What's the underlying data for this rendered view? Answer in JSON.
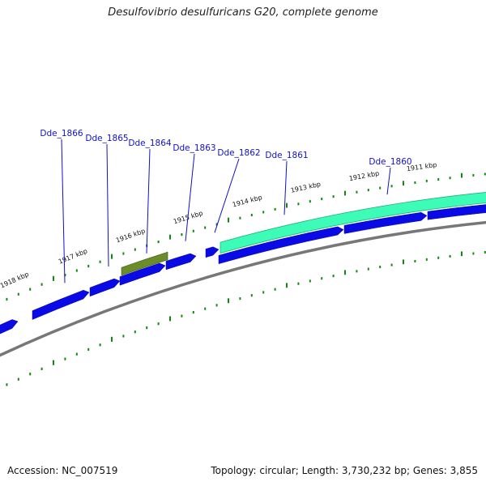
{
  "title": "Desulfovibrio desulfuricans G20, complete genome",
  "footer": {
    "accession": "Accession: NC_007519",
    "summary": "Topology: circular; Length: 3,730,232 bp; Genes: 3,855"
  },
  "colors": {
    "cds": "#0a0ae6",
    "cds_highlight": "#6b8c2a",
    "rna": "#3dfcb8",
    "backbone": "#777777",
    "ticks": "#118811",
    "gene_label": "#1010c8"
  },
  "kbp_labels": [
    "1918 kbp",
    "1917 kbp",
    "1916 kbp",
    "1915 kbp",
    "1914 kbp",
    "1913 kbp",
    "1912 kbp",
    "1911 kbp"
  ],
  "genes": [
    {
      "name": "Dde_1866"
    },
    {
      "name": "Dde_1865"
    },
    {
      "name": "Dde_1864"
    },
    {
      "name": "Dde_1863"
    },
    {
      "name": "Dde_1862"
    },
    {
      "name": "Dde_1861"
    },
    {
      "name": "Dde_1860"
    }
  ]
}
